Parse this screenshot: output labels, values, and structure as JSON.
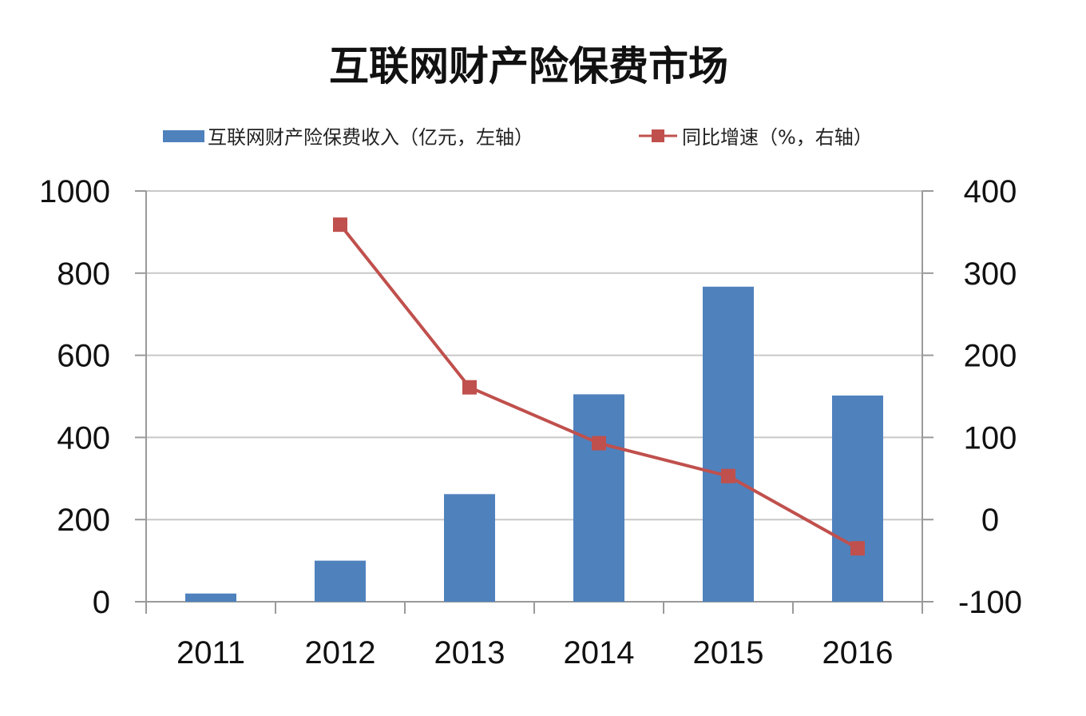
{
  "chart_data": {
    "type": "bar",
    "title": "互联网财产险保费市场",
    "categories": [
      "2011",
      "2012",
      "2013",
      "2014",
      "2015",
      "2016"
    ],
    "series": [
      {
        "name": "互联网财产险保费收入（亿元，左轴）",
        "type": "bar",
        "axis": "left",
        "values": [
          20,
          100,
          262,
          505,
          767,
          502
        ]
      },
      {
        "name": "同比增速（%，右轴）",
        "type": "line",
        "axis": "right",
        "values": [
          null,
          359,
          161,
          93,
          53,
          -35
        ]
      }
    ],
    "left_axis": {
      "ylim": [
        0,
        1000
      ],
      "ticks": [
        "1000",
        "800",
        "600",
        "400",
        "200",
        "0"
      ]
    },
    "right_axis": {
      "ylim": [
        -100,
        400
      ],
      "ticks": [
        "400",
        "300",
        "200",
        "100",
        "0",
        "-100"
      ]
    },
    "grid": true,
    "legend_position": "top",
    "colors": {
      "bar": "#4f81bd",
      "line": "#c0504d",
      "grid": "#c8c8c8",
      "axis": "#9a9a9a"
    }
  }
}
